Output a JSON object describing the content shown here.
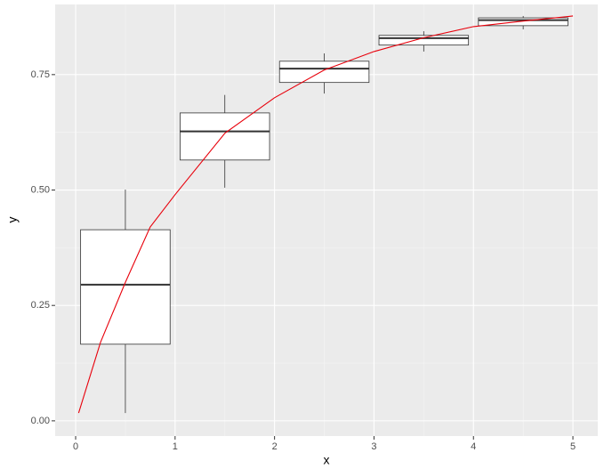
{
  "chart_data": {
    "type": "boxplot",
    "xlabel": "x",
    "ylabel": "y",
    "xlim": [
      -0.206,
      5.25
    ],
    "ylim": [
      -0.033,
      0.902
    ],
    "xticks": [
      0,
      1,
      2,
      3,
      4,
      5
    ],
    "yticks": [
      {
        "value": 0,
        "label": "0.00"
      },
      {
        "value": 0.25,
        "label": "0.25"
      },
      {
        "value": 0.5,
        "label": "0.50"
      },
      {
        "value": 0.75,
        "label": "0.75"
      }
    ],
    "grid": true,
    "boxes": {
      "x": [
        0.5,
        1.5,
        2.5,
        3.5,
        4.5
      ],
      "min": [
        0.017,
        0.505,
        0.709,
        0.8,
        0.848
      ],
      "q1": [
        0.166,
        0.565,
        0.733,
        0.814,
        0.856
      ],
      "median": [
        0.295,
        0.627,
        0.763,
        0.829,
        0.868
      ],
      "q3": [
        0.414,
        0.667,
        0.779,
        0.835,
        0.873
      ],
      "max": [
        0.501,
        0.706,
        0.796,
        0.844,
        0.877
      ],
      "color": "#333333",
      "fill": "#ffffff"
    },
    "curve": {
      "color": "#e8000b",
      "x": [
        0.03,
        0.25,
        0.5,
        0.75,
        1.0,
        1.5,
        2.0,
        2.5,
        3.0,
        3.5,
        4.0,
        4.5,
        5.0
      ],
      "values": [
        0.017,
        0.17,
        0.3,
        0.42,
        0.49,
        0.623,
        0.7,
        0.76,
        0.8,
        0.83,
        0.854,
        0.866,
        0.877
      ]
    }
  }
}
